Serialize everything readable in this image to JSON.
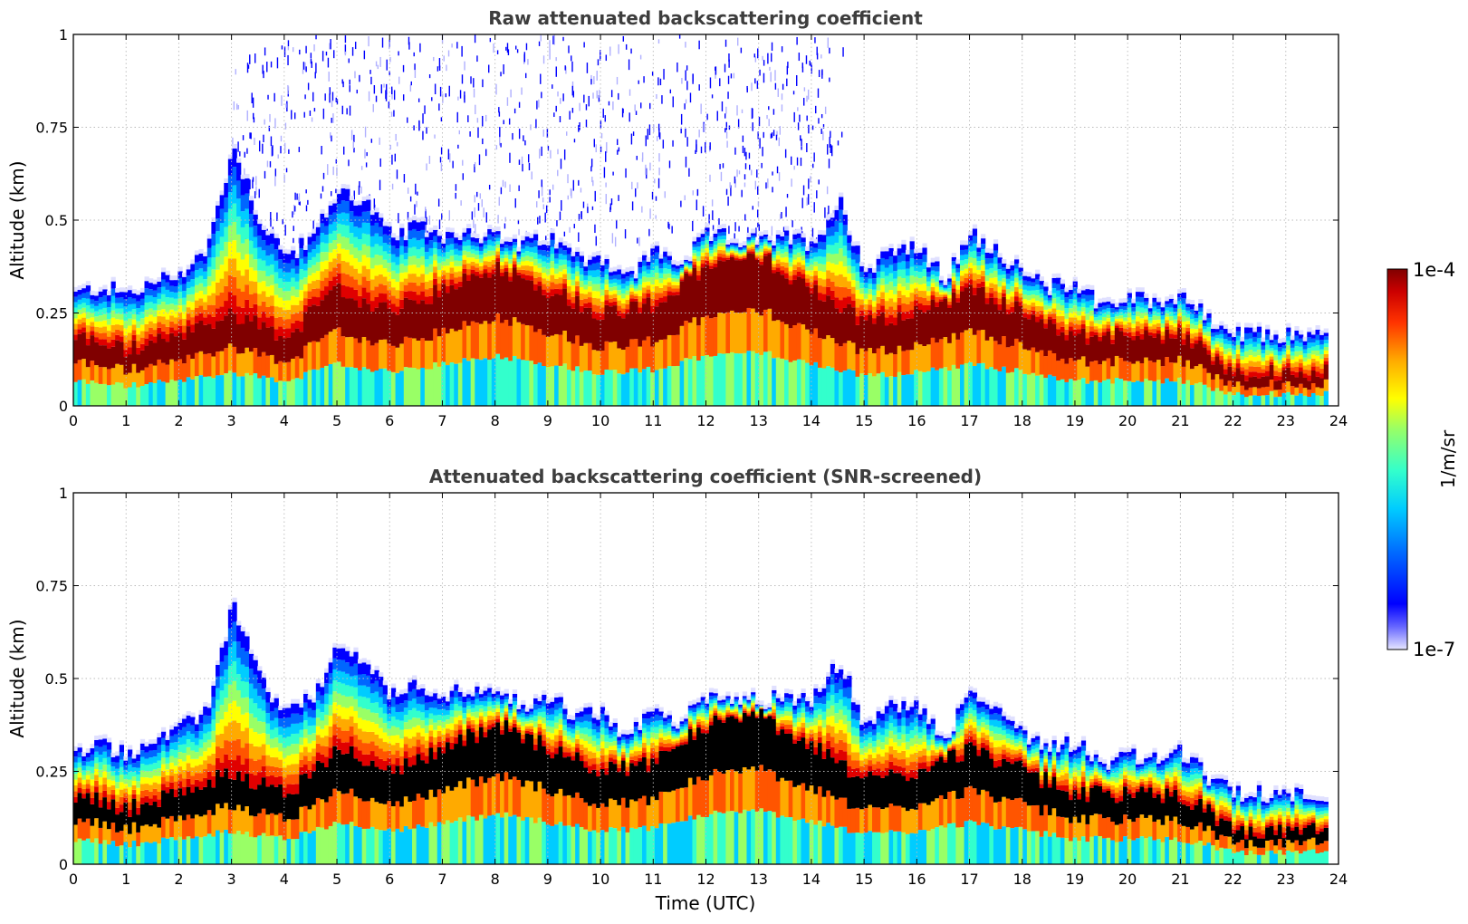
{
  "colors": {
    "colormap": [
      "#0000ff",
      "#0066ff",
      "#00ccff",
      "#33ffcc",
      "#99ff66",
      "#ffff00",
      "#ffaa00",
      "#ff5500",
      "#e00000",
      "#800000"
    ],
    "low_end": "#e0e0ff",
    "screened_peak": "#000000",
    "title": "#3d3d3d",
    "grid": "#bbbbbb"
  },
  "chart_data": [
    {
      "type": "heatmap",
      "title": "Raw attenuated backscattering coefficient",
      "xlabel": "",
      "ylabel": "Altitude (km)",
      "xlim": [
        0,
        24
      ],
      "ylim": [
        0,
        1
      ],
      "x_ticks": [
        "0",
        "1",
        "2",
        "3",
        "4",
        "5",
        "6",
        "7",
        "8",
        "9",
        "10",
        "11",
        "12",
        "13",
        "14",
        "15",
        "16",
        "17",
        "18",
        "19",
        "20",
        "21",
        "22",
        "23",
        "24"
      ],
      "y_ticks": [
        "0",
        "0.25",
        "0.5",
        "0.75",
        "1"
      ],
      "grid": true,
      "colorscale": "log",
      "data_end_time": 23.8,
      "top_profile": {
        "time": [
          0,
          0.5,
          1,
          1.5,
          2,
          2.5,
          3,
          3.5,
          4,
          4.5,
          5,
          5.5,
          6,
          6.5,
          7,
          7.5,
          8,
          8.5,
          9,
          9.5,
          10,
          10.5,
          11,
          11.5,
          12,
          12.5,
          13,
          13.5,
          14,
          14.5,
          15,
          15.5,
          16,
          16.5,
          17,
          17.5,
          18,
          18.5,
          19,
          19.5,
          20,
          20.5,
          21,
          21.5,
          22,
          22.5,
          23,
          23.8
        ],
        "altitude_km": [
          0.3,
          0.32,
          0.3,
          0.33,
          0.36,
          0.42,
          0.7,
          0.5,
          0.4,
          0.45,
          0.58,
          0.55,
          0.45,
          0.48,
          0.46,
          0.47,
          0.45,
          0.43,
          0.45,
          0.4,
          0.4,
          0.34,
          0.42,
          0.38,
          0.46,
          0.45,
          0.44,
          0.45,
          0.44,
          0.55,
          0.36,
          0.43,
          0.42,
          0.34,
          0.46,
          0.42,
          0.35,
          0.32,
          0.33,
          0.27,
          0.29,
          0.28,
          0.3,
          0.23,
          0.19,
          0.19,
          0.19,
          0.19
        ]
      },
      "peak_profile": {
        "time": [
          0,
          1,
          2,
          3,
          4,
          5,
          6,
          7,
          8,
          9,
          10,
          11,
          12,
          13,
          14,
          15,
          16,
          17,
          18,
          19,
          20,
          21,
          22,
          23,
          23.8
        ],
        "altitude_km": [
          0.15,
          0.12,
          0.15,
          0.2,
          0.15,
          0.25,
          0.2,
          0.25,
          0.3,
          0.25,
          0.2,
          0.22,
          0.3,
          0.32,
          0.25,
          0.18,
          0.2,
          0.25,
          0.2,
          0.15,
          0.15,
          0.15,
          0.07,
          0.07,
          0.07
        ]
      },
      "noise_extent": {
        "time_start": 3,
        "time_end": 14.6,
        "altitude_min_km": 0.45,
        "altitude_max_km": 1
      }
    },
    {
      "type": "heatmap",
      "title": "Attenuated backscattering coefficient (SNR-screened)",
      "xlabel": "Time (UTC)",
      "ylabel": "Altitude (km)",
      "xlim": [
        0,
        24
      ],
      "ylim": [
        0,
        1
      ],
      "x_ticks": [
        "0",
        "1",
        "2",
        "3",
        "4",
        "5",
        "6",
        "7",
        "8",
        "9",
        "10",
        "11",
        "12",
        "13",
        "14",
        "15",
        "16",
        "17",
        "18",
        "19",
        "20",
        "21",
        "22",
        "23",
        "24"
      ],
      "y_ticks": [
        "0",
        "0.25",
        "0.5",
        "0.75",
        "1"
      ],
      "grid": true,
      "colorscale": "log",
      "data_end_time": 23.8
    }
  ],
  "colorbar": {
    "label": "1/m/sr",
    "max_label": "1e-4",
    "min_label": "1e-7",
    "range": [
      1e-07,
      0.0001
    ]
  }
}
